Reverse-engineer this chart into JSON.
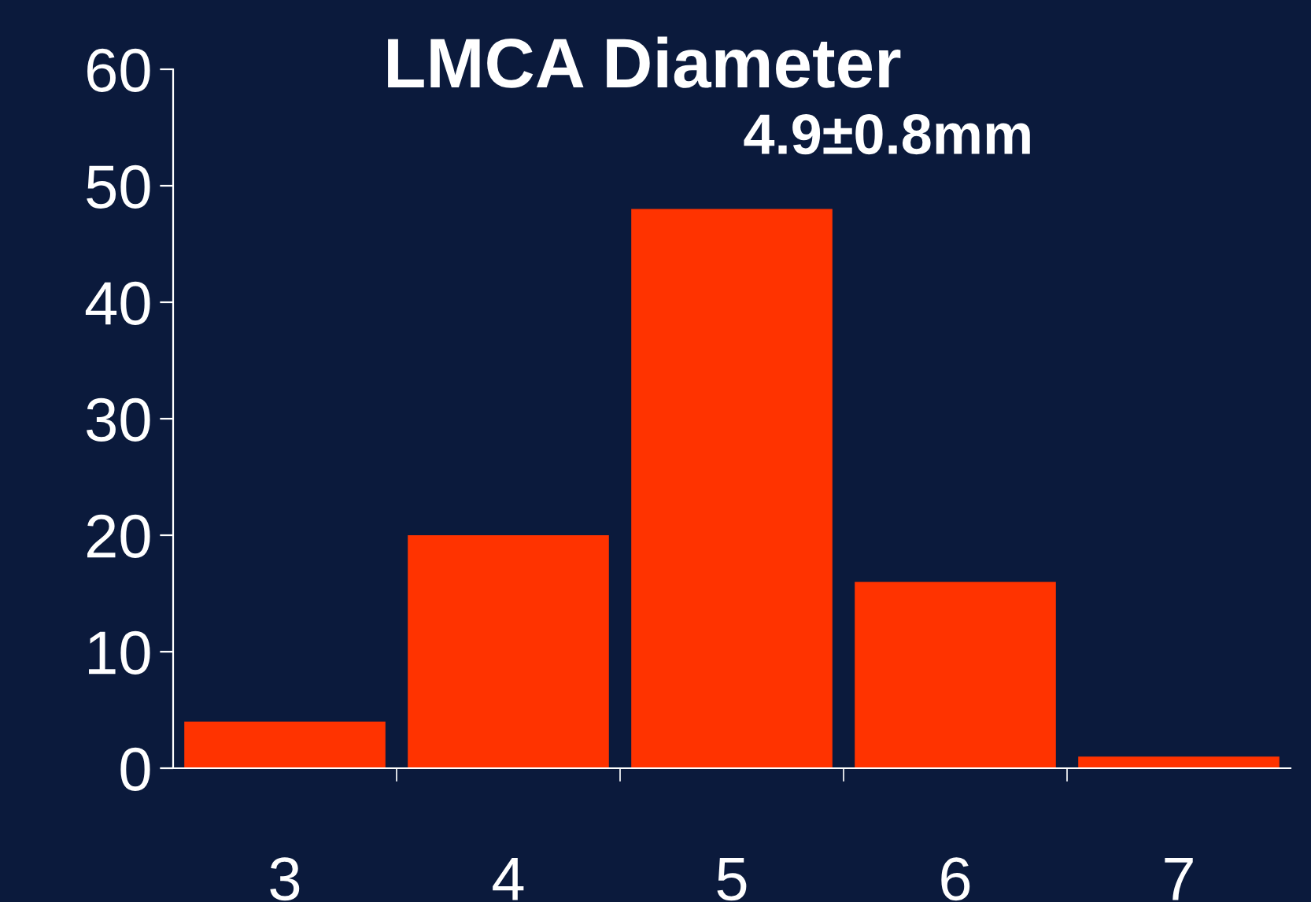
{
  "chart_data": {
    "type": "bar",
    "title": "LMCA Diameter",
    "annotations": [
      "4.9±0.8mm"
    ],
    "categories": [
      "3",
      "4",
      "5",
      "6",
      "7"
    ],
    "values": [
      4,
      20,
      48,
      16,
      1
    ],
    "color": "#ff3300",
    "ylim": [
      0,
      60
    ],
    "yticks": [
      0,
      10,
      20,
      30,
      40,
      50,
      60
    ],
    "grid": false,
    "legend": false
  }
}
